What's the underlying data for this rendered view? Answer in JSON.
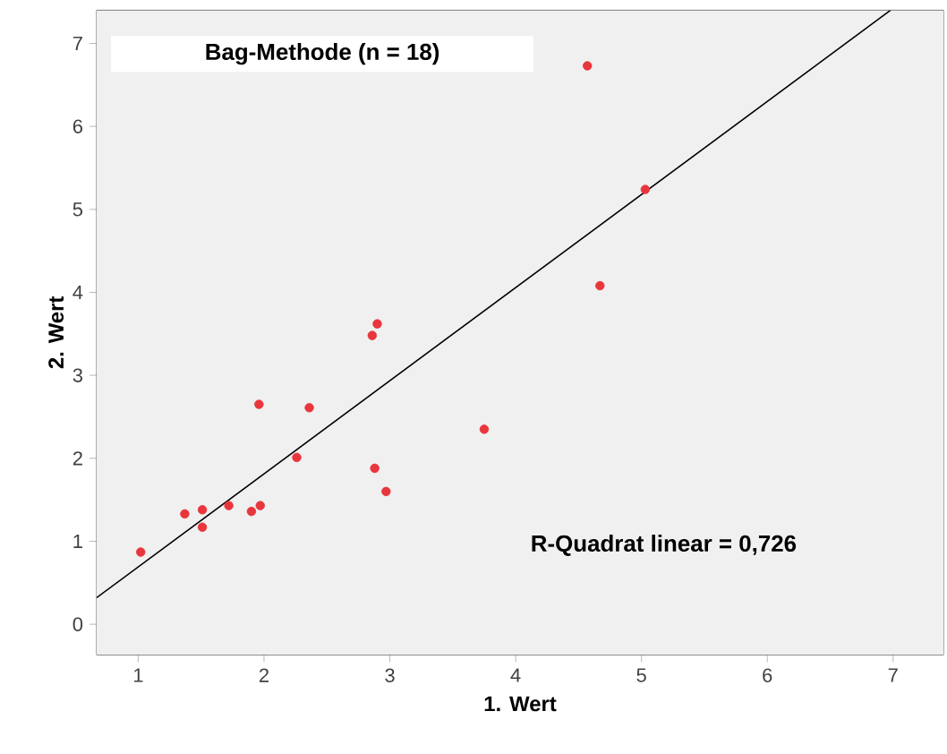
{
  "chart_data": {
    "type": "scatter",
    "xlabel": "1. Wert",
    "ylabel": "2. Wert",
    "annotations": [
      "Bag-Methode (n = 18)",
      "R-Quadrat linear = 0,726"
    ],
    "xlim": [
      0.67,
      7.4
    ],
    "ylim": [
      -0.37,
      7.4
    ],
    "xticks": [
      1,
      2,
      3,
      4,
      5,
      6,
      7
    ],
    "yticks": [
      0,
      1,
      2,
      3,
      4,
      5,
      6,
      7
    ],
    "grid": false,
    "series": [
      {
        "color": "#e8363c",
        "marker": "circle",
        "x": [
          1.02,
          1.37,
          1.51,
          1.51,
          1.72,
          1.9,
          1.97,
          1.96,
          2.36,
          2.26,
          2.88,
          2.97,
          3.75,
          2.86,
          2.9,
          4.57,
          5.03,
          4.67
        ],
        "values": [
          0.87,
          1.33,
          1.38,
          1.17,
          1.43,
          1.36,
          1.43,
          2.65,
          2.61,
          2.01,
          1.88,
          1.6,
          2.35,
          3.48,
          3.62,
          6.73,
          5.24,
          4.08
        ]
      },
      {
        "type": "line",
        "color": "#000000",
        "marker": "none",
        "x": [
          0.67,
          6.98
        ],
        "values": [
          0.32,
          7.4
        ]
      }
    ]
  }
}
